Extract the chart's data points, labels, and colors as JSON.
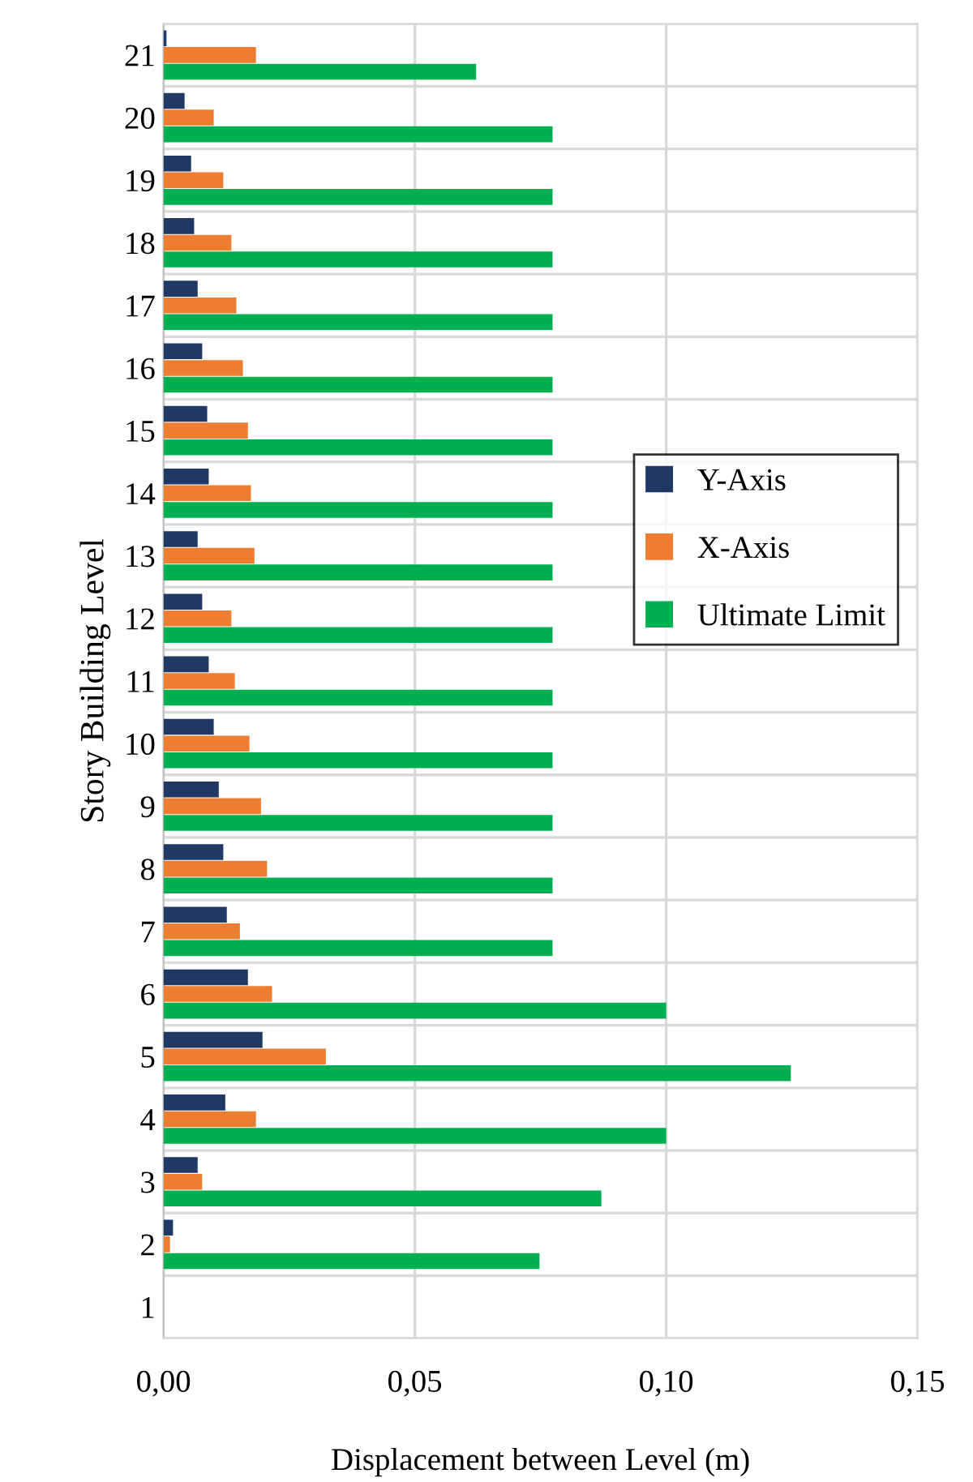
{
  "chart_data": {
    "type": "bar",
    "orientation": "horizontal",
    "xlabel": "Displacement between Level (m)",
    "ylabel": "Story Building Level",
    "categories": [
      "21",
      "20",
      "19",
      "18",
      "17",
      "16",
      "15",
      "14",
      "13",
      "12",
      "11",
      "10",
      "9",
      "8",
      "7",
      "6",
      "5",
      "4",
      "3",
      "2",
      "1"
    ],
    "series": [
      {
        "name": "Y-Axis",
        "color": "#1f3864",
        "values": [
          0.0006,
          0.0042,
          0.0055,
          0.0061,
          0.0068,
          0.0077,
          0.0087,
          0.009,
          0.0068,
          0.0077,
          0.009,
          0.01,
          0.011,
          0.0119,
          0.0126,
          0.0168,
          0.0197,
          0.0123,
          0.0068,
          0.0019,
          0
        ]
      },
      {
        "name": "X-Axis",
        "color": "#ed7d31",
        "values": [
          0.0184,
          0.01,
          0.0119,
          0.0135,
          0.0145,
          0.0158,
          0.0168,
          0.0174,
          0.0181,
          0.0135,
          0.0142,
          0.0171,
          0.0194,
          0.0206,
          0.0152,
          0.0216,
          0.0323,
          0.0184,
          0.0077,
          0.0013,
          0
        ]
      },
      {
        "name": "Ultimate Limit",
        "color": "#00b050",
        "values": [
          0.0622,
          0.0774,
          0.0774,
          0.0774,
          0.0774,
          0.0774,
          0.0774,
          0.0774,
          0.0774,
          0.0774,
          0.0774,
          0.0774,
          0.0774,
          0.0774,
          0.0774,
          0.1,
          0.1248,
          0.1,
          0.0871,
          0.0748,
          0
        ]
      }
    ],
    "xlim": [
      0,
      0.15
    ],
    "xticks": [
      {
        "value": 0,
        "label": "0,00"
      },
      {
        "value": 0.05,
        "label": "0,05"
      },
      {
        "value": 0.1,
        "label": "0,10"
      },
      {
        "value": 0.15,
        "label": "0,15"
      }
    ],
    "grid": true,
    "legend": "right"
  }
}
